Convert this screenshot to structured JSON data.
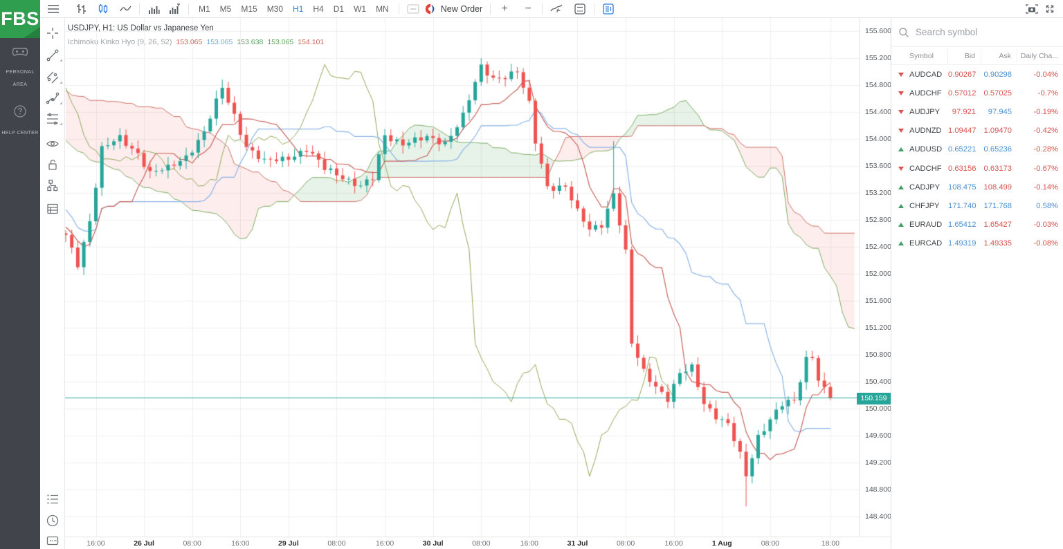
{
  "app": {
    "logo_text": "FBS"
  },
  "sidebar": {
    "items": [
      {
        "label": "PERSONAL AREA"
      },
      {
        "label": "HELP CENTER"
      }
    ]
  },
  "toolbar": {
    "timeframes": [
      "M1",
      "M5",
      "M15",
      "M30",
      "H1",
      "H4",
      "D1",
      "W1",
      "MN"
    ],
    "active_timeframe": "H1",
    "new_order_label": "New Order",
    "zoom_in_label": "+",
    "zoom_out_label": "−"
  },
  "chart": {
    "symbol_title": "USDJPY, H1: US Dollar vs Japanese Yen",
    "indicator_label": "Ichimoku Kinko Hyo (9, 26, 52)",
    "indicator_periods": {
      "tenkan": 9,
      "kijun": 26,
      "senkou": 52
    },
    "indicator_values": [
      {
        "text": "153.065",
        "color": "#cf625b"
      },
      {
        "text": "153.065",
        "color": "#6fa8dc"
      },
      {
        "text": "153.638",
        "color": "#5fa05c"
      },
      {
        "text": "153.065",
        "color": "#5fa05c"
      },
      {
        "text": "154.101",
        "color": "#cf625b"
      }
    ],
    "current_price": "150.159",
    "price_axis": {
      "max": 155.6,
      "min": 148.4,
      "step": 0.4
    },
    "price_axis_labels": [
      "155.600",
      "155.200",
      "154.800",
      "154.400",
      "154.000",
      "153.600",
      "153.200",
      "152.800",
      "152.400",
      "152.000",
      "151.600",
      "151.200",
      "150.800",
      "150.400",
      "150.000",
      "149.600",
      "149.200",
      "148.800",
      "148.400"
    ],
    "time_ticks": [
      {
        "bar": 5,
        "label": "16:00",
        "bold": false
      },
      {
        "bar": 13,
        "label": "26 Jul",
        "bold": true
      },
      {
        "bar": 21,
        "label": "08:00",
        "bold": false
      },
      {
        "bar": 29,
        "label": "16:00",
        "bold": false
      },
      {
        "bar": 37,
        "label": "29 Jul",
        "bold": true
      },
      {
        "bar": 45,
        "label": "08:00",
        "bold": false
      },
      {
        "bar": 53,
        "label": "16:00",
        "bold": false
      },
      {
        "bar": 61,
        "label": "30 Jul",
        "bold": true
      },
      {
        "bar": 69,
        "label": "08:00",
        "bold": false
      },
      {
        "bar": 77,
        "label": "16:00",
        "bold": false
      },
      {
        "bar": 85,
        "label": "31 Jul",
        "bold": true
      },
      {
        "bar": 93,
        "label": "08:00",
        "bold": false
      },
      {
        "bar": 101,
        "label": "16:00",
        "bold": false
      },
      {
        "bar": 109,
        "label": "1 Aug",
        "bold": true
      },
      {
        "bar": 117,
        "label": "08:00",
        "bold": false
      },
      {
        "bar": 127,
        "label": "18:00",
        "bold": false
      }
    ],
    "history_anchors": [
      [
        -80,
        156.1
      ],
      [
        -70,
        155.9
      ],
      [
        -62,
        155.95
      ],
      [
        -54,
        155.5
      ],
      [
        -46,
        154.9
      ],
      [
        -38,
        154.05
      ],
      [
        -30,
        153.45
      ],
      [
        -24,
        153.25
      ],
      [
        -18,
        153.1
      ],
      [
        -12,
        152.95
      ],
      [
        -6,
        152.75
      ],
      [
        -1,
        152.6
      ]
    ],
    "candle_anchors": [
      [
        0,
        152.55
      ],
      [
        2,
        152.15
      ],
      [
        4,
        152.8
      ],
      [
        6,
        153.85
      ],
      [
        9,
        154.0
      ],
      [
        12,
        153.8
      ],
      [
        14,
        153.5
      ],
      [
        17,
        153.55
      ],
      [
        20,
        153.75
      ],
      [
        23,
        154.1
      ],
      [
        26,
        154.75
      ],
      [
        28,
        154.35
      ],
      [
        30,
        153.9
      ],
      [
        33,
        153.65
      ],
      [
        36,
        153.7
      ],
      [
        40,
        153.85
      ],
      [
        43,
        153.55
      ],
      [
        46,
        153.45
      ],
      [
        49,
        153.3
      ],
      [
        51,
        153.4
      ],
      [
        53,
        154.05
      ],
      [
        56,
        153.95
      ],
      [
        60,
        154.0
      ],
      [
        63,
        153.95
      ],
      [
        66,
        154.35
      ],
      [
        69,
        155.05
      ],
      [
        71,
        154.9
      ],
      [
        73,
        154.95
      ],
      [
        75,
        155.0
      ],
      [
        77,
        154.5
      ],
      [
        78,
        153.95
      ],
      [
        80,
        153.3
      ],
      [
        83,
        153.3
      ],
      [
        85,
        152.9
      ],
      [
        87,
        152.65
      ],
      [
        89,
        152.75
      ],
      [
        91,
        153.2
      ],
      [
        93,
        152.3
      ],
      [
        94,
        150.95
      ],
      [
        96,
        150.55
      ],
      [
        98,
        150.35
      ],
      [
        100,
        150.15
      ],
      [
        102,
        150.5
      ],
      [
        104,
        150.6
      ],
      [
        106,
        150.1
      ],
      [
        108,
        149.9
      ],
      [
        110,
        149.75
      ],
      [
        112,
        149.3
      ],
      [
        113,
        149.0
      ],
      [
        115,
        149.6
      ],
      [
        117,
        149.85
      ],
      [
        119,
        150.05
      ],
      [
        121,
        150.1
      ],
      [
        123,
        150.75
      ],
      [
        124,
        150.8
      ],
      [
        125,
        150.45
      ],
      [
        127,
        150.16
      ]
    ],
    "wick_overrides": {
      "26": {
        "high": 154.88
      },
      "69": {
        "high": 155.2
      },
      "91": {
        "high": 153.97
      },
      "113": {
        "low": 148.55
      }
    },
    "colors": {
      "candle_up": "#26a69a",
      "candle_down": "#ef5350",
      "tenkan": "#c9625b",
      "kijun": "#8ab4e8",
      "senkou_a": "#7fae63",
      "senkou_b": "#cf7368",
      "chikou": "#91a857",
      "cloud_up": "rgba(103,183,119,0.16)",
      "cloud_down": "rgba(239,110,104,0.12)",
      "price_line": "#26a69a",
      "grid": "#efefef"
    }
  },
  "watchlist": {
    "search_placeholder": "Search symbol",
    "columns": [
      "Symbol",
      "Bid",
      "Ask",
      "Daily Cha..."
    ],
    "rows": [
      {
        "symbol": "AUDCAD",
        "dir": "down",
        "bid": "0.90267",
        "bid_c": "r",
        "ask": "0.90298",
        "ask_c": "b",
        "chg": "-0.04%",
        "chg_c": "r"
      },
      {
        "symbol": "AUDCHF",
        "dir": "down",
        "bid": "0.57012",
        "bid_c": "r",
        "ask": "0.57025",
        "ask_c": "r",
        "chg": "-0.7%",
        "chg_c": "r"
      },
      {
        "symbol": "AUDJPY",
        "dir": "down",
        "bid": "97.921",
        "bid_c": "r",
        "ask": "97.945",
        "ask_c": "b",
        "chg": "-0.19%",
        "chg_c": "r"
      },
      {
        "symbol": "AUDNZD",
        "dir": "down",
        "bid": "1.09447",
        "bid_c": "r",
        "ask": "1.09470",
        "ask_c": "r",
        "chg": "-0.42%",
        "chg_c": "r"
      },
      {
        "symbol": "AUDUSD",
        "dir": "up",
        "bid": "0.65221",
        "bid_c": "b",
        "ask": "0.65236",
        "ask_c": "b",
        "chg": "-0.28%",
        "chg_c": "r"
      },
      {
        "symbol": "CADCHF",
        "dir": "down",
        "bid": "0.63156",
        "bid_c": "r",
        "ask": "0.63173",
        "ask_c": "r",
        "chg": "-0.67%",
        "chg_c": "r"
      },
      {
        "symbol": "CADJPY",
        "dir": "up",
        "bid": "108.475",
        "bid_c": "b",
        "ask": "108.499",
        "ask_c": "r",
        "chg": "-0.14%",
        "chg_c": "r"
      },
      {
        "symbol": "CHFJPY",
        "dir": "up",
        "bid": "171.740",
        "bid_c": "b",
        "ask": "171.768",
        "ask_c": "b",
        "chg": "0.58%",
        "chg_c": "b"
      },
      {
        "symbol": "EURAUD",
        "dir": "up",
        "bid": "1.65412",
        "bid_c": "b",
        "ask": "1.65427",
        "ask_c": "r",
        "chg": "-0.03%",
        "chg_c": "r"
      },
      {
        "symbol": "EURCAD",
        "dir": "up",
        "bid": "1.49319",
        "bid_c": "b",
        "ask": "1.49335",
        "ask_c": "r",
        "chg": "-0.08%",
        "chg_c": "r"
      }
    ]
  }
}
